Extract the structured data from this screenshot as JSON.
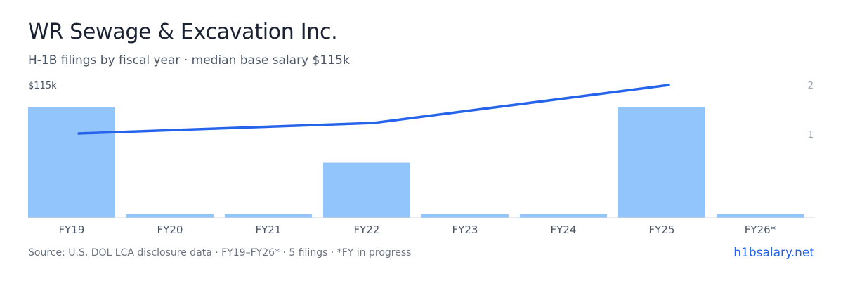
{
  "header": {
    "title": "WR Sewage & Excavation Inc.",
    "subtitle": "H-1B filings by fiscal year · median base salary $115k"
  },
  "footer": {
    "source": "Source: U.S. DOL LCA disclosure data · FY19–FY26* · 5 filings · *FY in progress",
    "brand": "h1bsalary.net"
  },
  "colors": {
    "bar": "#93c5fd",
    "line": "#2563eb",
    "axis": "#d1d5db",
    "tick_text": "#4a5566",
    "right_axis_text": "#9ca3af"
  },
  "chart_data": {
    "type": "bar",
    "categories": [
      "FY19",
      "FY20",
      "FY21",
      "FY22",
      "FY23",
      "FY24",
      "FY25",
      "FY26*"
    ],
    "series": [
      {
        "values": [
          2,
          0,
          0,
          1,
          0,
          0,
          2,
          0
        ]
      },
      {
        "values": [
          115000,
          null,
          null,
          115000,
          null,
          null,
          115000,
          null
        ]
      }
    ],
    "left_axis": {
      "label": "$115k"
    },
    "right_axis": {
      "ticks": [
        "2",
        "1"
      ],
      "ylim": [
        0,
        2
      ]
    },
    "line_scale_note": "",
    "grid": false
  }
}
